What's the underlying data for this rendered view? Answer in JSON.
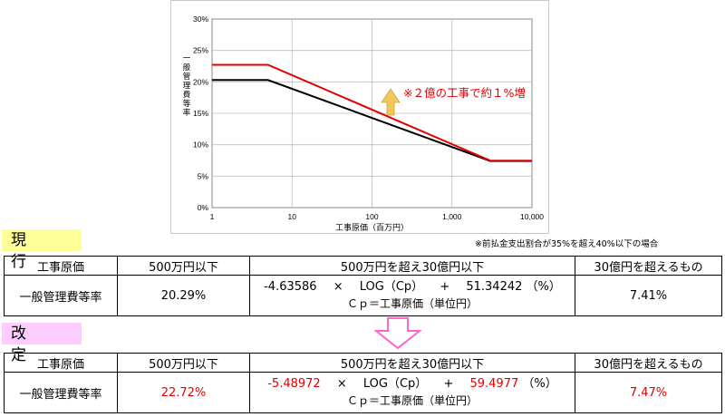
{
  "chart_data": {
    "type": "line",
    "xlabel": "工事原価（百万円）",
    "ylabel": "一般管理費等率",
    "x_scale": "log",
    "xlim": [
      1,
      10000
    ],
    "ylim": [
      0,
      30
    ],
    "x_ticks": [
      1,
      10,
      100,
      1000,
      10000
    ],
    "x_tick_labels": [
      "1",
      "10",
      "100",
      "1,000",
      "10,000"
    ],
    "y_ticks": [
      0,
      5,
      10,
      15,
      20,
      25,
      30
    ],
    "y_tick_labels": [
      "0%",
      "5%",
      "10%",
      "15%",
      "20%",
      "25%",
      "30%"
    ],
    "grid": true,
    "series": [
      {
        "color": "#000000",
        "x": [
          1,
          5,
          3000,
          10000
        ],
        "y": [
          20.29,
          20.29,
          7.41,
          7.41
        ]
      },
      {
        "color": "#e00000",
        "x": [
          1,
          5,
          3000,
          10000
        ],
        "y": [
          22.72,
          22.72,
          7.47,
          7.47
        ]
      }
    ],
    "annotation": "※２億の工事で約１%増",
    "annotation_color": "#e00000",
    "arrow_color": "#f2c85b"
  },
  "note": "※前払金支出割合が35%を超え40%以下の場合",
  "current": {
    "title": "現 行",
    "headers": [
      "工事原価",
      "500万円以下",
      "500万円を超え30億円以下",
      "30億円を超えるもの"
    ],
    "row_label": "一般管理費等率",
    "low": "20.29%",
    "formula": {
      "a": "-4.63586",
      "op1": "×",
      "log": "LOG（Cp）",
      "op2": "+",
      "b": "51.34242",
      "unit": "（%）"
    },
    "formula_note": "Ｃｐ＝工事原価（単位円）",
    "high": "7.41%"
  },
  "revised": {
    "title": "改 定",
    "headers": [
      "工事原価",
      "500万円以下",
      "500万円を超え30億円以下",
      "30億円を超えるもの"
    ],
    "row_label": "一般管理費等率",
    "low": "22.72%",
    "formula": {
      "a": "-5.48972",
      "op1": "×",
      "log": "LOG（Cp）",
      "op2": "+",
      "b": "59.4977",
      "unit": "（%）"
    },
    "formula_note": "Ｃｐ＝工事原価（単位円）",
    "high": "7.47%"
  },
  "colors": {
    "current_label_bg": "#ffff99",
    "revised_label_bg": "#ffccff",
    "accent_red": "#e00000",
    "arrow_pink": "#ff66cc"
  }
}
